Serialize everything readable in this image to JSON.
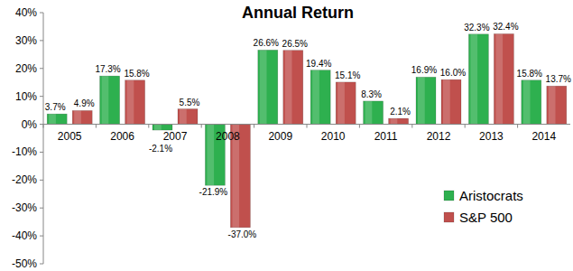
{
  "chart_data": {
    "type": "bar",
    "title": "Annual Return",
    "categories": [
      "2005",
      "2006",
      "2007",
      "2008",
      "2009",
      "2010",
      "2011",
      "2012",
      "2013",
      "2014"
    ],
    "series": [
      {
        "name": "Aristocrats",
        "color": "#2eb04f",
        "values": [
          3.7,
          17.3,
          -2.1,
          -21.9,
          26.6,
          19.4,
          8.3,
          16.9,
          32.3,
          15.8
        ],
        "value_labels": [
          "3.7%",
          "17.3%",
          "-2.1%",
          "-21.9%",
          "26.6%",
          "19.4%",
          "8.3%",
          "16.9%",
          "32.3%",
          "15.8%"
        ]
      },
      {
        "name": "S&P 500",
        "color": "#c0504d",
        "values": [
          4.9,
          15.8,
          5.5,
          -37.0,
          26.5,
          15.1,
          2.1,
          16.0,
          32.4,
          13.7
        ],
        "value_labels": [
          "4.9%",
          "15.8%",
          "5.5%",
          "-37.0%",
          "26.5%",
          "15.1%",
          "2.1%",
          "16.0%",
          "32.4%",
          "13.7%"
        ]
      }
    ],
    "ylim": [
      -50,
      40
    ],
    "yticks": [
      {
        "value": -50,
        "label": "-50%"
      },
      {
        "value": -40,
        "label": "-40%"
      },
      {
        "value": -30,
        "label": "-30%"
      },
      {
        "value": -20,
        "label": "-20%"
      },
      {
        "value": -10,
        "label": "-10%"
      },
      {
        "value": 0,
        "label": "0%"
      },
      {
        "value": 10,
        "label": "10%"
      },
      {
        "value": 20,
        "label": "20%"
      },
      {
        "value": 30,
        "label": "30%"
      },
      {
        "value": 40,
        "label": "40%"
      }
    ],
    "grid": false,
    "legend": "lower right",
    "data_labels": true
  }
}
